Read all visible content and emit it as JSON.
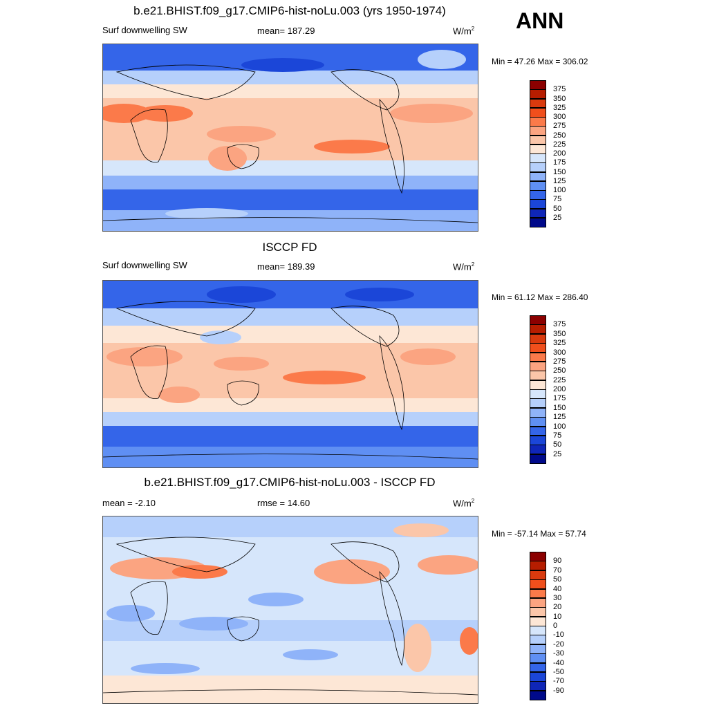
{
  "season": "ANN",
  "panels": [
    {
      "title": "b.e21.BHIST.f09_g17.CMIP6-hist-noLu.003 (yrs 1950-1974)",
      "left": "Surf downwelling SW",
      "center": "mean= 187.29",
      "units": "W/m",
      "units_sup": "2",
      "minmax": "Min =  47.26 Max = 306.02",
      "legend": [
        "375",
        "350",
        "325",
        "300",
        "275",
        "250",
        "225",
        "200",
        "175",
        "150",
        "125",
        "100",
        "75",
        "50",
        "25"
      ],
      "colors": [
        "#8b0000",
        "#b61d00",
        "#d93a0e",
        "#f04f1c",
        "#fb7a4a",
        "#fba481",
        "#fbc6a9",
        "#fde7d6",
        "#d6e6fb",
        "#b6d0fb",
        "#8fb3f9",
        "#5f8ff3",
        "#3465e9",
        "#1b46d8",
        "#0f26b8",
        "#000a8a"
      ]
    },
    {
      "title": "ISCCP FD",
      "left": "Surf downwelling SW",
      "center": "mean= 189.39",
      "units": "W/m",
      "units_sup": "2",
      "minmax": "Min =  61.12 Max = 286.40",
      "legend": [
        "375",
        "350",
        "325",
        "300",
        "275",
        "250",
        "225",
        "200",
        "175",
        "150",
        "125",
        "100",
        "75",
        "50",
        "25"
      ],
      "colors": [
        "#8b0000",
        "#b61d00",
        "#d93a0e",
        "#f04f1c",
        "#fb7a4a",
        "#fba481",
        "#fbc6a9",
        "#fde7d6",
        "#d6e6fb",
        "#b6d0fb",
        "#8fb3f9",
        "#5f8ff3",
        "#3465e9",
        "#1b46d8",
        "#0f26b8",
        "#000a8a"
      ]
    },
    {
      "title": "b.e21.BHIST.f09_g17.CMIP6-hist-noLu.003 - ISCCP FD",
      "left": "mean =  -2.10",
      "center": "rmse =  14.60",
      "units": "W/m",
      "units_sup": "2",
      "minmax": "Min = -57.14 Max =  57.74",
      "legend": [
        "90",
        "70",
        "50",
        "40",
        "30",
        "20",
        "10",
        "0",
        "-10",
        "-20",
        "-30",
        "-40",
        "-50",
        "-70",
        "-90"
      ],
      "colors": [
        "#8b0000",
        "#b61d00",
        "#d93a0e",
        "#f04f1c",
        "#fb7a4a",
        "#fba481",
        "#fbc6a9",
        "#fde7d6",
        "#d6e6fb",
        "#b6d0fb",
        "#8fb3f9",
        "#5f8ff3",
        "#3465e9",
        "#1b46d8",
        "#0f26b8",
        "#000a8a"
      ]
    }
  ]
}
